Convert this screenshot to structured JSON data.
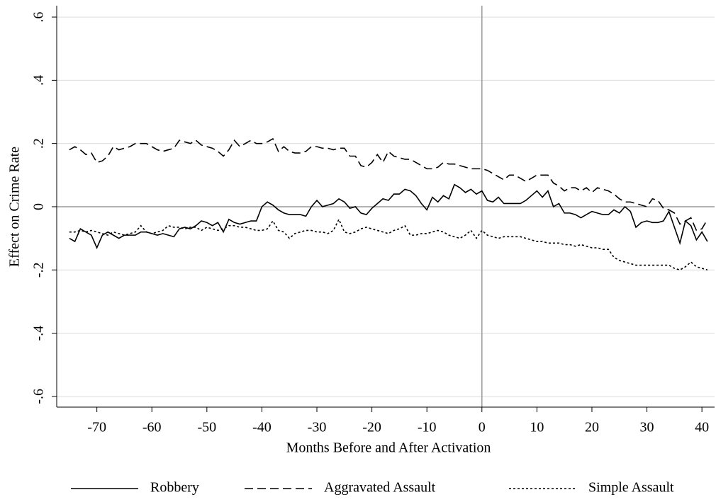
{
  "chart_data": {
    "type": "line",
    "xlabel": "Months Before and After Activation",
    "ylabel": "Effect on Crime Rate",
    "x": [
      -75,
      -74,
      -73,
      -72,
      -71,
      -70,
      -69,
      -68,
      -67,
      -66,
      -65,
      -64,
      -63,
      -62,
      -61,
      -60,
      -59,
      -58,
      -57,
      -56,
      -55,
      -54,
      -53,
      -52,
      -51,
      -50,
      -49,
      -48,
      -47,
      -46,
      -45,
      -44,
      -43,
      -42,
      -41,
      -40,
      -39,
      -38,
      -37,
      -36,
      -35,
      -34,
      -33,
      -32,
      -31,
      -30,
      -29,
      -28,
      -27,
      -26,
      -25,
      -24,
      -23,
      -22,
      -21,
      -20,
      -19,
      -18,
      -17,
      -16,
      -15,
      -14,
      -13,
      -12,
      -11,
      -10,
      -9,
      -8,
      -7,
      -6,
      -5,
      -4,
      -3,
      -2,
      -1,
      0,
      1,
      2,
      3,
      4,
      5,
      6,
      7,
      8,
      9,
      10,
      11,
      12,
      13,
      14,
      15,
      16,
      17,
      18,
      19,
      20,
      21,
      22,
      23,
      24,
      25,
      26,
      27,
      28,
      29,
      30,
      31,
      32,
      33,
      34,
      35,
      36,
      37,
      38,
      39,
      40,
      41
    ],
    "series": [
      {
        "name": "Robbery",
        "color": "#000000",
        "dash": "solid",
        "values": [
          -0.1,
          -0.11,
          -0.07,
          -0.08,
          -0.09,
          -0.13,
          -0.09,
          -0.08,
          -0.09,
          -0.1,
          -0.09,
          -0.09,
          -0.09,
          -0.08,
          -0.08,
          -0.085,
          -0.09,
          -0.085,
          -0.09,
          -0.095,
          -0.07,
          -0.065,
          -0.07,
          -0.06,
          -0.045,
          -0.05,
          -0.06,
          -0.05,
          -0.08,
          -0.04,
          -0.05,
          -0.055,
          -0.05,
          -0.045,
          -0.045,
          0.0,
          0.015,
          0.005,
          -0.01,
          -0.02,
          -0.025,
          -0.025,
          -0.025,
          -0.03,
          0.0,
          0.02,
          0.0,
          0.005,
          0.01,
          0.025,
          0.015,
          -0.005,
          0.0,
          -0.02,
          -0.025,
          -0.005,
          0.01,
          0.025,
          0.02,
          0.04,
          0.04,
          0.055,
          0.05,
          0.035,
          0.01,
          -0.01,
          0.03,
          0.015,
          0.035,
          0.025,
          0.07,
          0.06,
          0.045,
          0.055,
          0.04,
          0.05,
          0.02,
          0.015,
          0.03,
          0.01,
          0.01,
          0.01,
          0.01,
          0.02,
          0.035,
          0.05,
          0.03,
          0.05,
          0.0,
          0.01,
          -0.02,
          -0.02,
          -0.025,
          -0.035,
          -0.025,
          -0.015,
          -0.02,
          -0.025,
          -0.025,
          -0.01,
          -0.02,
          0.0,
          -0.015,
          -0.065,
          -0.05,
          -0.045,
          -0.05,
          -0.05,
          -0.045,
          -0.015,
          -0.065,
          -0.115,
          -0.045,
          -0.06,
          -0.105,
          -0.08,
          -0.11
        ]
      },
      {
        "name": "Aggravated Assault",
        "color": "#000000",
        "dash": "dashed",
        "values": [
          0.18,
          0.19,
          0.18,
          0.165,
          0.17,
          0.14,
          0.145,
          0.16,
          0.19,
          0.18,
          0.185,
          0.19,
          0.2,
          0.2,
          0.2,
          0.19,
          0.18,
          0.175,
          0.18,
          0.185,
          0.21,
          0.205,
          0.2,
          0.21,
          0.195,
          0.19,
          0.185,
          0.175,
          0.16,
          0.18,
          0.21,
          0.19,
          0.2,
          0.21,
          0.2,
          0.2,
          0.205,
          0.215,
          0.175,
          0.19,
          0.175,
          0.17,
          0.17,
          0.175,
          0.19,
          0.19,
          0.185,
          0.185,
          0.18,
          0.185,
          0.185,
          0.16,
          0.16,
          0.13,
          0.125,
          0.14,
          0.165,
          0.14,
          0.175,
          0.16,
          0.155,
          0.15,
          0.15,
          0.14,
          0.13,
          0.12,
          0.12,
          0.125,
          0.14,
          0.135,
          0.135,
          0.13,
          0.125,
          0.12,
          0.12,
          0.12,
          0.115,
          0.105,
          0.095,
          0.085,
          0.1,
          0.1,
          0.09,
          0.08,
          0.09,
          0.1,
          0.1,
          0.1,
          0.075,
          0.065,
          0.05,
          0.06,
          0.06,
          0.05,
          0.06,
          0.045,
          0.06,
          0.055,
          0.05,
          0.04,
          0.025,
          0.015,
          0.015,
          0.01,
          0.005,
          0.0,
          0.025,
          0.02,
          -0.005,
          -0.01,
          -0.02,
          -0.055,
          -0.045,
          -0.035,
          -0.075,
          -0.07,
          -0.04
        ]
      },
      {
        "name": "Simple Assault",
        "color": "#000000",
        "dash": "dotted",
        "values": [
          -0.08,
          -0.08,
          -0.075,
          -0.08,
          -0.075,
          -0.08,
          -0.085,
          -0.09,
          -0.08,
          -0.085,
          -0.09,
          -0.085,
          -0.08,
          -0.06,
          -0.08,
          -0.085,
          -0.08,
          -0.075,
          -0.06,
          -0.065,
          -0.065,
          -0.07,
          -0.065,
          -0.065,
          -0.075,
          -0.065,
          -0.07,
          -0.075,
          -0.07,
          -0.06,
          -0.06,
          -0.065,
          -0.065,
          -0.07,
          -0.075,
          -0.075,
          -0.07,
          -0.045,
          -0.075,
          -0.08,
          -0.1,
          -0.085,
          -0.08,
          -0.075,
          -0.075,
          -0.08,
          -0.08,
          -0.085,
          -0.075,
          -0.04,
          -0.08,
          -0.085,
          -0.08,
          -0.07,
          -0.065,
          -0.07,
          -0.075,
          -0.08,
          -0.085,
          -0.075,
          -0.07,
          -0.06,
          -0.09,
          -0.09,
          -0.085,
          -0.085,
          -0.08,
          -0.075,
          -0.08,
          -0.09,
          -0.095,
          -0.1,
          -0.09,
          -0.075,
          -0.1,
          -0.075,
          -0.09,
          -0.095,
          -0.1,
          -0.095,
          -0.095,
          -0.095,
          -0.095,
          -0.1,
          -0.105,
          -0.11,
          -0.11,
          -0.115,
          -0.115,
          -0.115,
          -0.12,
          -0.12,
          -0.125,
          -0.12,
          -0.125,
          -0.13,
          -0.13,
          -0.135,
          -0.135,
          -0.16,
          -0.17,
          -0.175,
          -0.18,
          -0.185,
          -0.185,
          -0.185,
          -0.185,
          -0.185,
          -0.185,
          -0.185,
          -0.195,
          -0.2,
          -0.19,
          -0.175,
          -0.19,
          -0.195,
          -0.2
        ]
      }
    ],
    "xlim": [
      -77.3,
      42.3
    ],
    "ylim": [
      -0.634,
      0.636
    ],
    "xticks": [
      -70,
      -60,
      -50,
      -40,
      -30,
      -20,
      -10,
      0,
      10,
      20,
      30,
      40
    ],
    "yticks": [
      {
        "value": -0.6,
        "label": "-.6"
      },
      {
        "value": -0.4,
        "label": "-.4"
      },
      {
        "value": -0.2,
        "label": "-.2"
      },
      0,
      {
        "value": 0.2,
        "label": ".2"
      },
      {
        "value": 0.4,
        "label": ".4"
      },
      {
        "value": 0.6,
        "label": ".6"
      }
    ],
    "grid": true,
    "legend": "bottom"
  }
}
